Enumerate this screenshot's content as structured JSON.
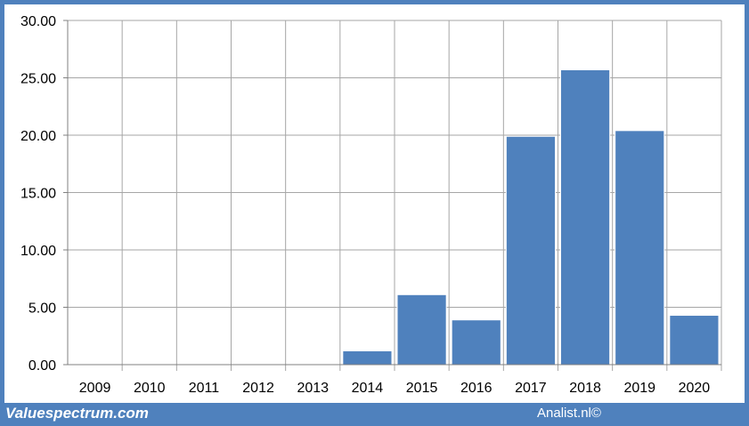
{
  "chart_data": {
    "type": "bar",
    "categories": [
      "2009",
      "2010",
      "2011",
      "2012",
      "2013",
      "2014",
      "2015",
      "2016",
      "2017",
      "2018",
      "2019",
      "2020"
    ],
    "values": [
      0,
      0,
      0,
      0,
      0,
      1.2,
      6.1,
      3.9,
      19.9,
      25.7,
      20.4,
      4.3
    ],
    "yticks": [
      "0.00",
      "5.00",
      "10.00",
      "15.00",
      "20.00",
      "25.00",
      "30.00"
    ],
    "ylim": [
      0,
      30
    ],
    "grid": true,
    "bar_color": "#4F81BD",
    "grid_color": "#A6A6A6"
  },
  "footer": {
    "left": "Valuespectrum.com",
    "right": "Analist.nl©"
  },
  "colors": {
    "frame": "#4F81BD",
    "background": "#FFFFFF"
  }
}
